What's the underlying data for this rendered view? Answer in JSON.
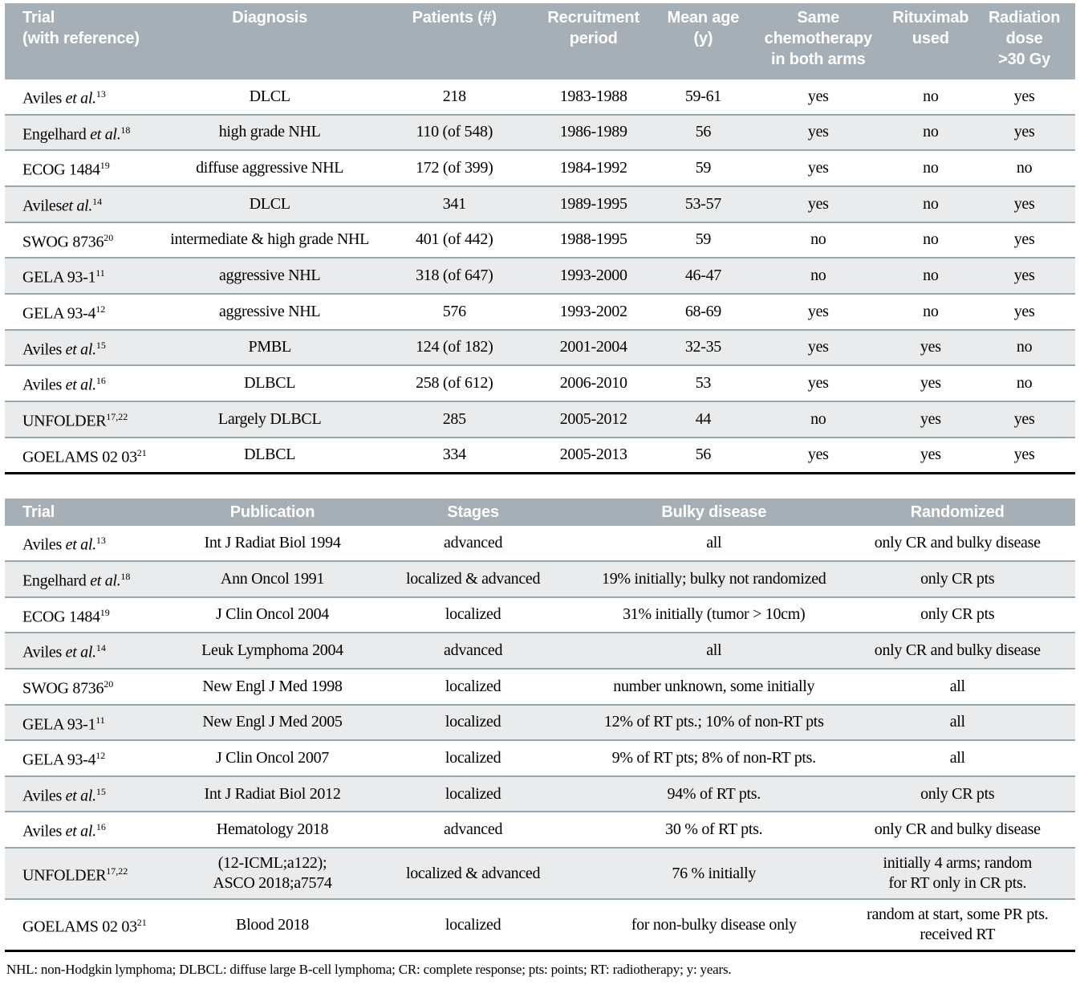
{
  "colors": {
    "header_bg": "#a5afb5",
    "stripe_bg": "#e9ebec",
    "row_rule": "#98a6ae",
    "table_end_rule": "#000000",
    "header_text": "#ffffff",
    "body_text": "#000000"
  },
  "table1": {
    "headers": [
      {
        "label": "Trial\n(with reference)",
        "align": "left"
      },
      {
        "label": "Diagnosis"
      },
      {
        "label": "Patients (#)"
      },
      {
        "label": "Recruitment\nperiod"
      },
      {
        "label": "Mean age (y)"
      },
      {
        "label": "Same\nchemotherapy\nin both arms"
      },
      {
        "label": "Rituximab\nused"
      },
      {
        "label": "Radiation\ndose\n>30 Gy"
      }
    ],
    "rows": [
      {
        "trial": {
          "text": "Aviles ",
          "italic": "et al.",
          "sup": "13"
        },
        "cells": [
          "DLCL",
          "218",
          "1983-1988",
          "59-61",
          "yes",
          "no",
          "yes"
        ]
      },
      {
        "trial": {
          "text": "Engelhard ",
          "italic": "et al.",
          "sup": "18"
        },
        "cells": [
          "high grade NHL",
          "110 (of 548)",
          "1986-1989",
          "56",
          "yes",
          "no",
          "yes"
        ]
      },
      {
        "trial": {
          "text": "ECOG 1484",
          "italic": "",
          "sup": "19"
        },
        "cells": [
          "diffuse aggressive NHL",
          "172 (of 399)",
          "1984-1992",
          "59",
          "yes",
          "no",
          "no"
        ]
      },
      {
        "trial": {
          "text": "Aviles",
          "italic": "et al.",
          "sup": "14"
        },
        "cells": [
          "DLCL",
          "341",
          "1989-1995",
          "53-57",
          "yes",
          "no",
          "yes"
        ]
      },
      {
        "trial": {
          "text": "SWOG 8736",
          "italic": "",
          "sup": "20"
        },
        "cells": [
          "intermediate & high grade NHL",
          "401 (of 442)",
          "1988-1995",
          "59",
          "no",
          "no",
          "yes"
        ]
      },
      {
        "trial": {
          "text": "GELA 93-1",
          "italic": "",
          "sup": "11"
        },
        "cells": [
          "aggressive NHL",
          "318 (of 647)",
          "1993-2000",
          "46-47",
          "no",
          "no",
          "yes"
        ]
      },
      {
        "trial": {
          "text": "GELA 93-4",
          "italic": "",
          "sup": "12"
        },
        "cells": [
          "aggressive NHL",
          "576",
          "1993-2002",
          "68-69",
          "yes",
          "no",
          "yes"
        ]
      },
      {
        "trial": {
          "text": "Aviles ",
          "italic": "et al.",
          "sup": "15"
        },
        "cells": [
          "PMBL",
          "124 (of 182)",
          "2001-2004",
          "32-35",
          "yes",
          "yes",
          "no"
        ]
      },
      {
        "trial": {
          "text": "Aviles ",
          "italic": "et al.",
          "sup": "16"
        },
        "cells": [
          "DLBCL",
          "258 (of 612)",
          "2006-2010",
          "53",
          "yes",
          "yes",
          "no"
        ]
      },
      {
        "trial": {
          "text": "UNFOLDER",
          "italic": "",
          "sup": "17,22"
        },
        "cells": [
          "Largely DLBCL",
          "285",
          "2005-2012",
          "44",
          "no",
          "yes",
          "yes"
        ]
      },
      {
        "trial": {
          "text": "GOELAMS 02 03",
          "italic": "",
          "sup": "21"
        },
        "cells": [
          "DLBCL",
          "334",
          "2005-2013",
          "56",
          "yes",
          "yes",
          "yes"
        ]
      }
    ]
  },
  "table2": {
    "headers": [
      {
        "label": "Trial",
        "align": "left"
      },
      {
        "label": "Publication"
      },
      {
        "label": "Stages"
      },
      {
        "label": "Bulky disease"
      },
      {
        "label": "Randomized"
      }
    ],
    "rows": [
      {
        "trial": {
          "text": "Aviles ",
          "italic": "et al.",
          "sup": "13"
        },
        "cells": [
          "Int J Radiat Biol 1994",
          "advanced",
          "all",
          "only CR and bulky disease"
        ]
      },
      {
        "trial": {
          "text": "Engelhard ",
          "italic": "et al.",
          "sup": "18"
        },
        "cells": [
          "Ann Oncol 1991",
          "localized & advanced",
          "19% initially; bulky not randomized",
          "only CR pts"
        ]
      },
      {
        "trial": {
          "text": "ECOG 1484",
          "italic": "",
          "sup": "19"
        },
        "cells": [
          "J Clin Oncol 2004",
          "localized",
          "31% initially (tumor > 10cm)",
          "only CR pts"
        ]
      },
      {
        "trial": {
          "text": "Aviles ",
          "italic": "et al.",
          "sup": "14"
        },
        "cells": [
          "Leuk Lymphoma 2004",
          "advanced",
          "all",
          "only CR and bulky disease"
        ]
      },
      {
        "trial": {
          "text": "SWOG 8736",
          "italic": "",
          "sup": "20"
        },
        "cells": [
          "New Engl J Med 1998",
          "localized",
          "number unknown, some initially",
          "all"
        ]
      },
      {
        "trial": {
          "text": "GELA 93-1",
          "italic": "",
          "sup": "11"
        },
        "cells": [
          "New Engl J Med 2005",
          "localized",
          "12% of RT pts.; 10% of non-RT pts",
          "all"
        ]
      },
      {
        "trial": {
          "text": "GELA 93-4",
          "italic": "",
          "sup": "12"
        },
        "cells": [
          "J Clin Oncol 2007",
          "localized",
          "9% of RT pts; 8% of non-RT pts.",
          "all"
        ]
      },
      {
        "trial": {
          "text": "Aviles ",
          "italic": "et al.",
          "sup": "15"
        },
        "cells": [
          "Int J Radiat Biol 2012",
          "localized",
          "94% of RT pts.",
          "only CR pts"
        ]
      },
      {
        "trial": {
          "text": "Aviles ",
          "italic": "et al.",
          "sup": "16"
        },
        "cells": [
          "Hematology 2018",
          "advanced",
          "30 % of RT pts.",
          "only CR and bulky disease"
        ]
      },
      {
        "trial": {
          "text": "UNFOLDER",
          "italic": "",
          "sup": "17,22"
        },
        "cells": [
          "(12-ICML;a122);\nASCO 2018;a7574",
          "localized & advanced",
          "76 % initially",
          "initially 4 arms; random\nfor RT only in CR pts."
        ]
      },
      {
        "trial": {
          "text": "GOELAMS 02 03",
          "italic": "",
          "sup": "21"
        },
        "cells": [
          "Blood 2018",
          "localized",
          "for non-bulky disease only",
          "random at start, some PR pts.\nreceived RT"
        ]
      }
    ]
  },
  "footnote": "NHL: non-Hodgkin lymphoma; DLBCL: diffuse large B-cell lymphoma; CR: complete response; pts: points; RT: radiotherapy; y: years."
}
